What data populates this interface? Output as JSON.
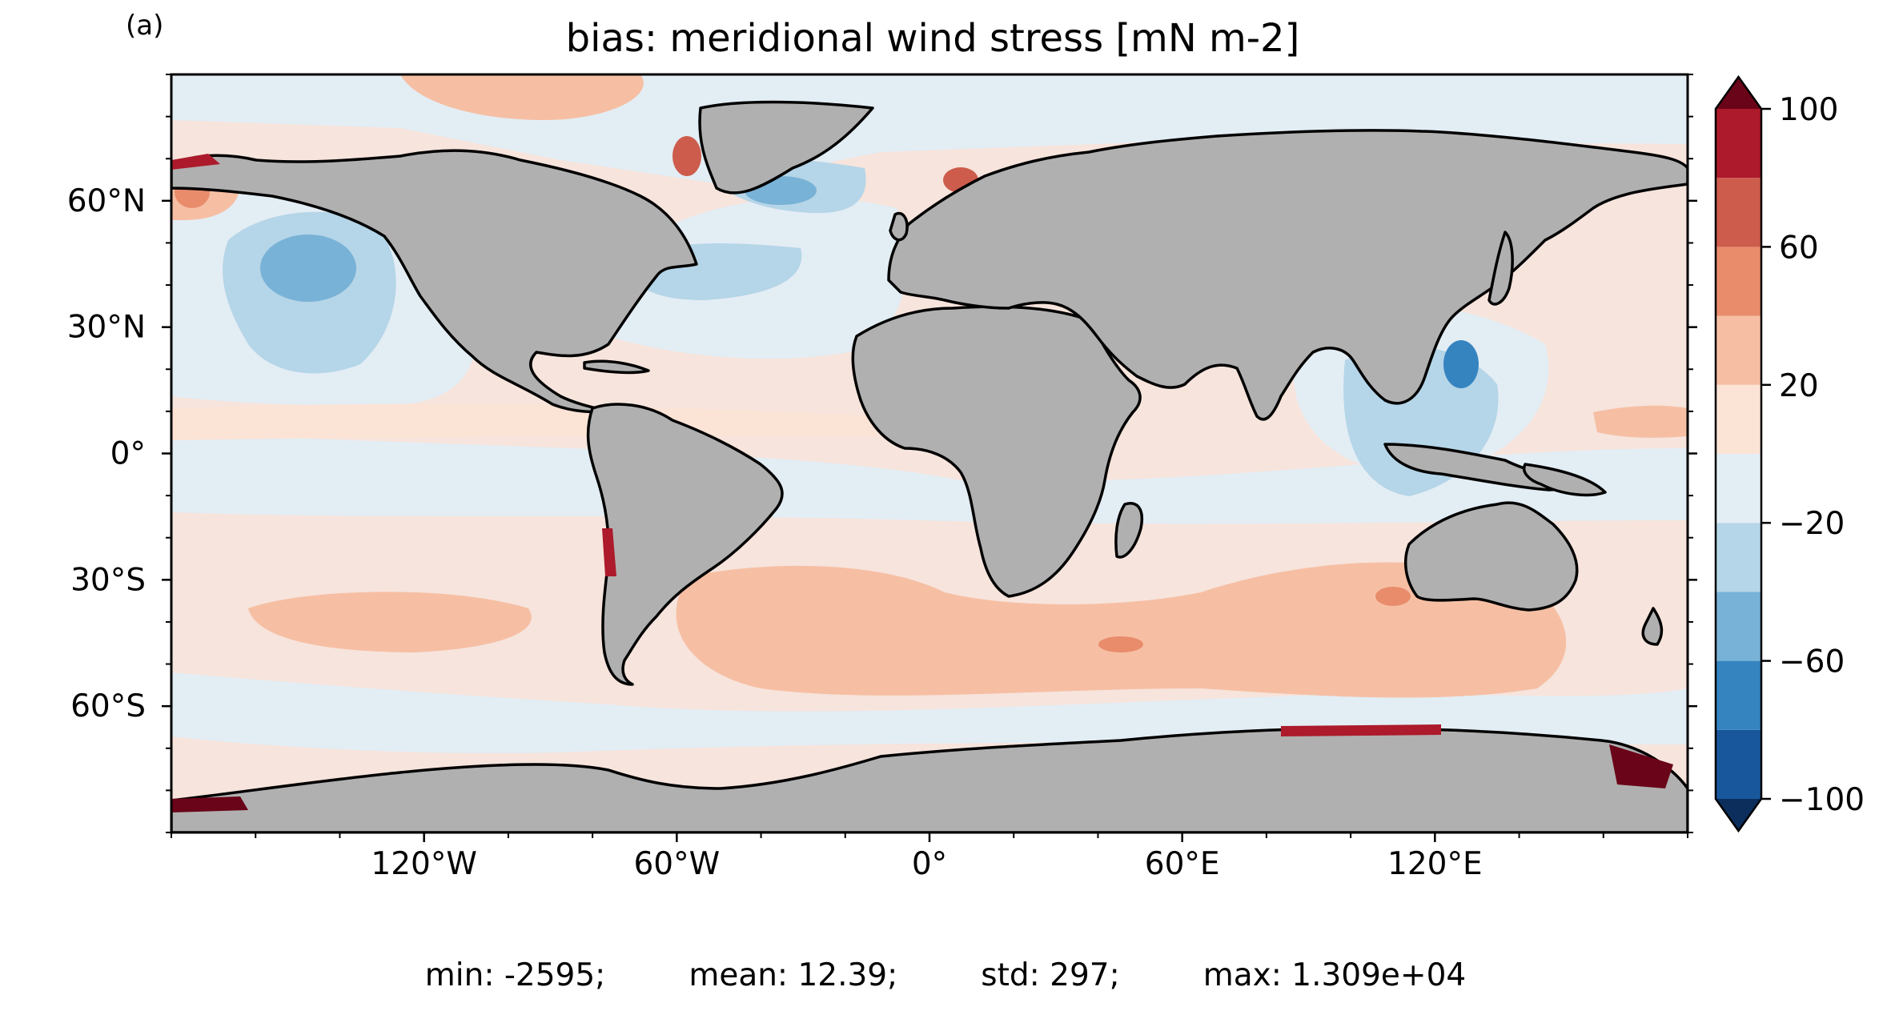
{
  "figure": {
    "panel_label": "(a)",
    "title": "bias: meridional wind stress [mN m-2]"
  },
  "map": {
    "projection": "PlateCarree",
    "lon_range": [
      -180,
      180
    ],
    "lat_range": [
      -90,
      90
    ],
    "x_ticks": [
      {
        "lon": -120,
        "label": "120°W"
      },
      {
        "lon": -60,
        "label": "60°W"
      },
      {
        "lon": 0,
        "label": "0°"
      },
      {
        "lon": 60,
        "label": "60°E"
      },
      {
        "lon": 120,
        "label": "120°E"
      }
    ],
    "y_ticks": [
      {
        "lat": 60,
        "label": "60°N"
      },
      {
        "lat": 30,
        "label": "30°N"
      },
      {
        "lat": 0,
        "label": "0°"
      },
      {
        "lat": -30,
        "label": "30°S"
      },
      {
        "lat": -60,
        "label": "60°S"
      }
    ],
    "land_color": "#b0b0b0",
    "ocean_background": "#f7e4dc"
  },
  "colorbar": {
    "levels": [
      -100,
      -80,
      -60,
      -40,
      -20,
      0,
      20,
      40,
      60,
      80,
      100
    ],
    "colors": [
      "#19579c",
      "#3584c0",
      "#78b2d6",
      "#b5d5e8",
      "#e3edf4",
      "#fbe3d6",
      "#f6bfa4",
      "#e88c6c",
      "#cd5c4d",
      "#ac1a2b"
    ],
    "under_color": "#0b2e5c",
    "over_color": "#6a0418",
    "tick_labels": [
      {
        "value": 100,
        "label": "100"
      },
      {
        "value": 60,
        "label": "60"
      },
      {
        "value": 20,
        "label": "20"
      },
      {
        "value": -20,
        "label": "−20"
      },
      {
        "value": -60,
        "label": "−60"
      },
      {
        "value": -100,
        "label": "−100"
      }
    ]
  },
  "stats": {
    "min": "min: -2595;",
    "mean": "mean: 12.39;",
    "std": "std: 297;",
    "max": "max: 1.309e+04"
  }
}
